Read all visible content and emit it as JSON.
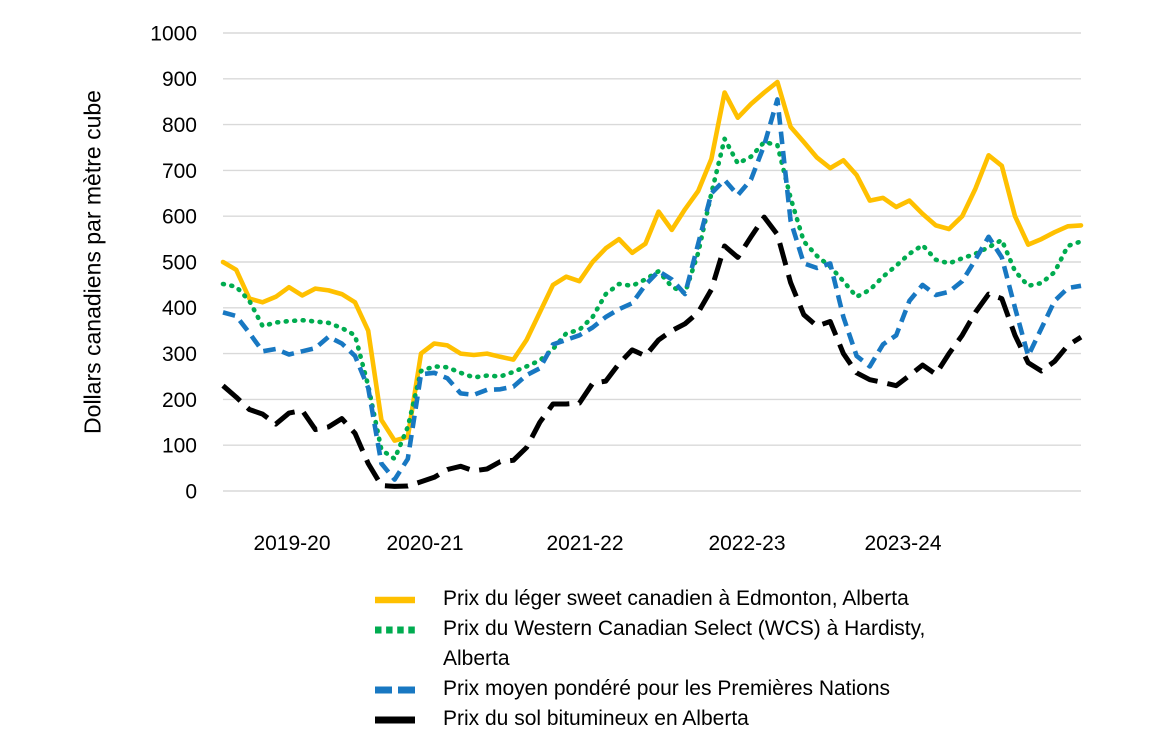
{
  "figure": {
    "background": "#FFFFFF",
    "text_color": "#000000"
  },
  "chart_data": {
    "type": "line",
    "title": "",
    "ylabel": "Dollars canadiens par mètre cube",
    "xlabel": "",
    "ylim": [
      0,
      1000
    ],
    "yticks": [
      0,
      100,
      200,
      300,
      400,
      500,
      600,
      700,
      800,
      900,
      1000
    ],
    "grid": "horizontal",
    "gridline_color": "#D9D9D9",
    "legend_position": "bottom",
    "x_unit": "month",
    "x_start": "2019-04",
    "x_tick_labels": [
      "2019-20",
      "2020-21",
      "2021-22",
      "2022-23",
      "2023-24"
    ],
    "series": [
      {
        "name": "Prix du léger sweet canadien à Edmonton, Alberta",
        "color": "#FFC000",
        "style": "solid",
        "values": [
          500,
          483,
          420,
          412,
          424,
          445,
          427,
          442,
          438,
          430,
          412,
          350,
          155,
          110,
          118,
          300,
          322,
          318,
          300,
          297,
          300,
          293,
          287,
          330,
          390,
          450,
          468,
          458,
          500,
          530,
          550,
          520,
          540,
          610,
          570,
          615,
          655,
          725,
          870,
          815,
          845,
          870,
          893,
          795,
          762,
          728,
          705,
          722,
          690,
          634,
          640,
          620,
          634,
          605,
          580,
          572,
          600,
          660,
          733,
          710,
          600,
          538,
          550,
          565,
          578,
          580
        ]
      },
      {
        "name": "Prix du Western Canadian Select (WCS) à Hardisty, Alberta",
        "color": "#00AC50",
        "style": "dotted",
        "values": [
          452,
          446,
          415,
          360,
          368,
          371,
          373,
          370,
          367,
          356,
          340,
          230,
          90,
          70,
          140,
          262,
          272,
          270,
          258,
          248,
          252,
          250,
          260,
          272,
          285,
          310,
          344,
          352,
          380,
          430,
          452,
          448,
          462,
          480,
          446,
          432,
          520,
          650,
          769,
          715,
          730,
          762,
          755,
          640,
          545,
          513,
          490,
          458,
          424,
          439,
          468,
          492,
          518,
          537,
          505,
          497,
          508,
          518,
          532,
          548,
          480,
          448,
          454,
          478,
          535,
          545
        ]
      },
      {
        "name": "Prix moyen pondéré pour les Premières Nations",
        "color": "#1878C2",
        "style": "dashed",
        "values": [
          390,
          382,
          345,
          305,
          310,
          298,
          305,
          312,
          337,
          322,
          295,
          225,
          60,
          25,
          70,
          255,
          258,
          246,
          213,
          210,
          221,
          222,
          228,
          253,
          268,
          320,
          330,
          340,
          357,
          380,
          397,
          410,
          450,
          480,
          462,
          430,
          540,
          650,
          679,
          646,
          680,
          755,
          855,
          590,
          497,
          487,
          497,
          380,
          295,
          272,
          320,
          340,
          415,
          450,
          428,
          435,
          458,
          505,
          555,
          510,
          400,
          295,
          355,
          415,
          443,
          448
        ]
      },
      {
        "name": "Prix du sol bitumineux en Alberta",
        "color": "#000000",
        "style": "long-dash",
        "values": [
          230,
          205,
          178,
          168,
          146,
          170,
          176,
          134,
          140,
          158,
          126,
          60,
          12,
          10,
          11,
          20,
          30,
          47,
          54,
          44,
          48,
          64,
          67,
          95,
          150,
          190,
          190,
          192,
          235,
          240,
          278,
          308,
          295,
          330,
          350,
          365,
          390,
          440,
          535,
          510,
          555,
          598,
          560,
          455,
          385,
          360,
          370,
          300,
          258,
          243,
          237,
          230,
          252,
          275,
          255,
          300,
          340,
          390,
          430,
          420,
          340,
          280,
          262,
          283,
          318,
          336
        ]
      }
    ]
  }
}
